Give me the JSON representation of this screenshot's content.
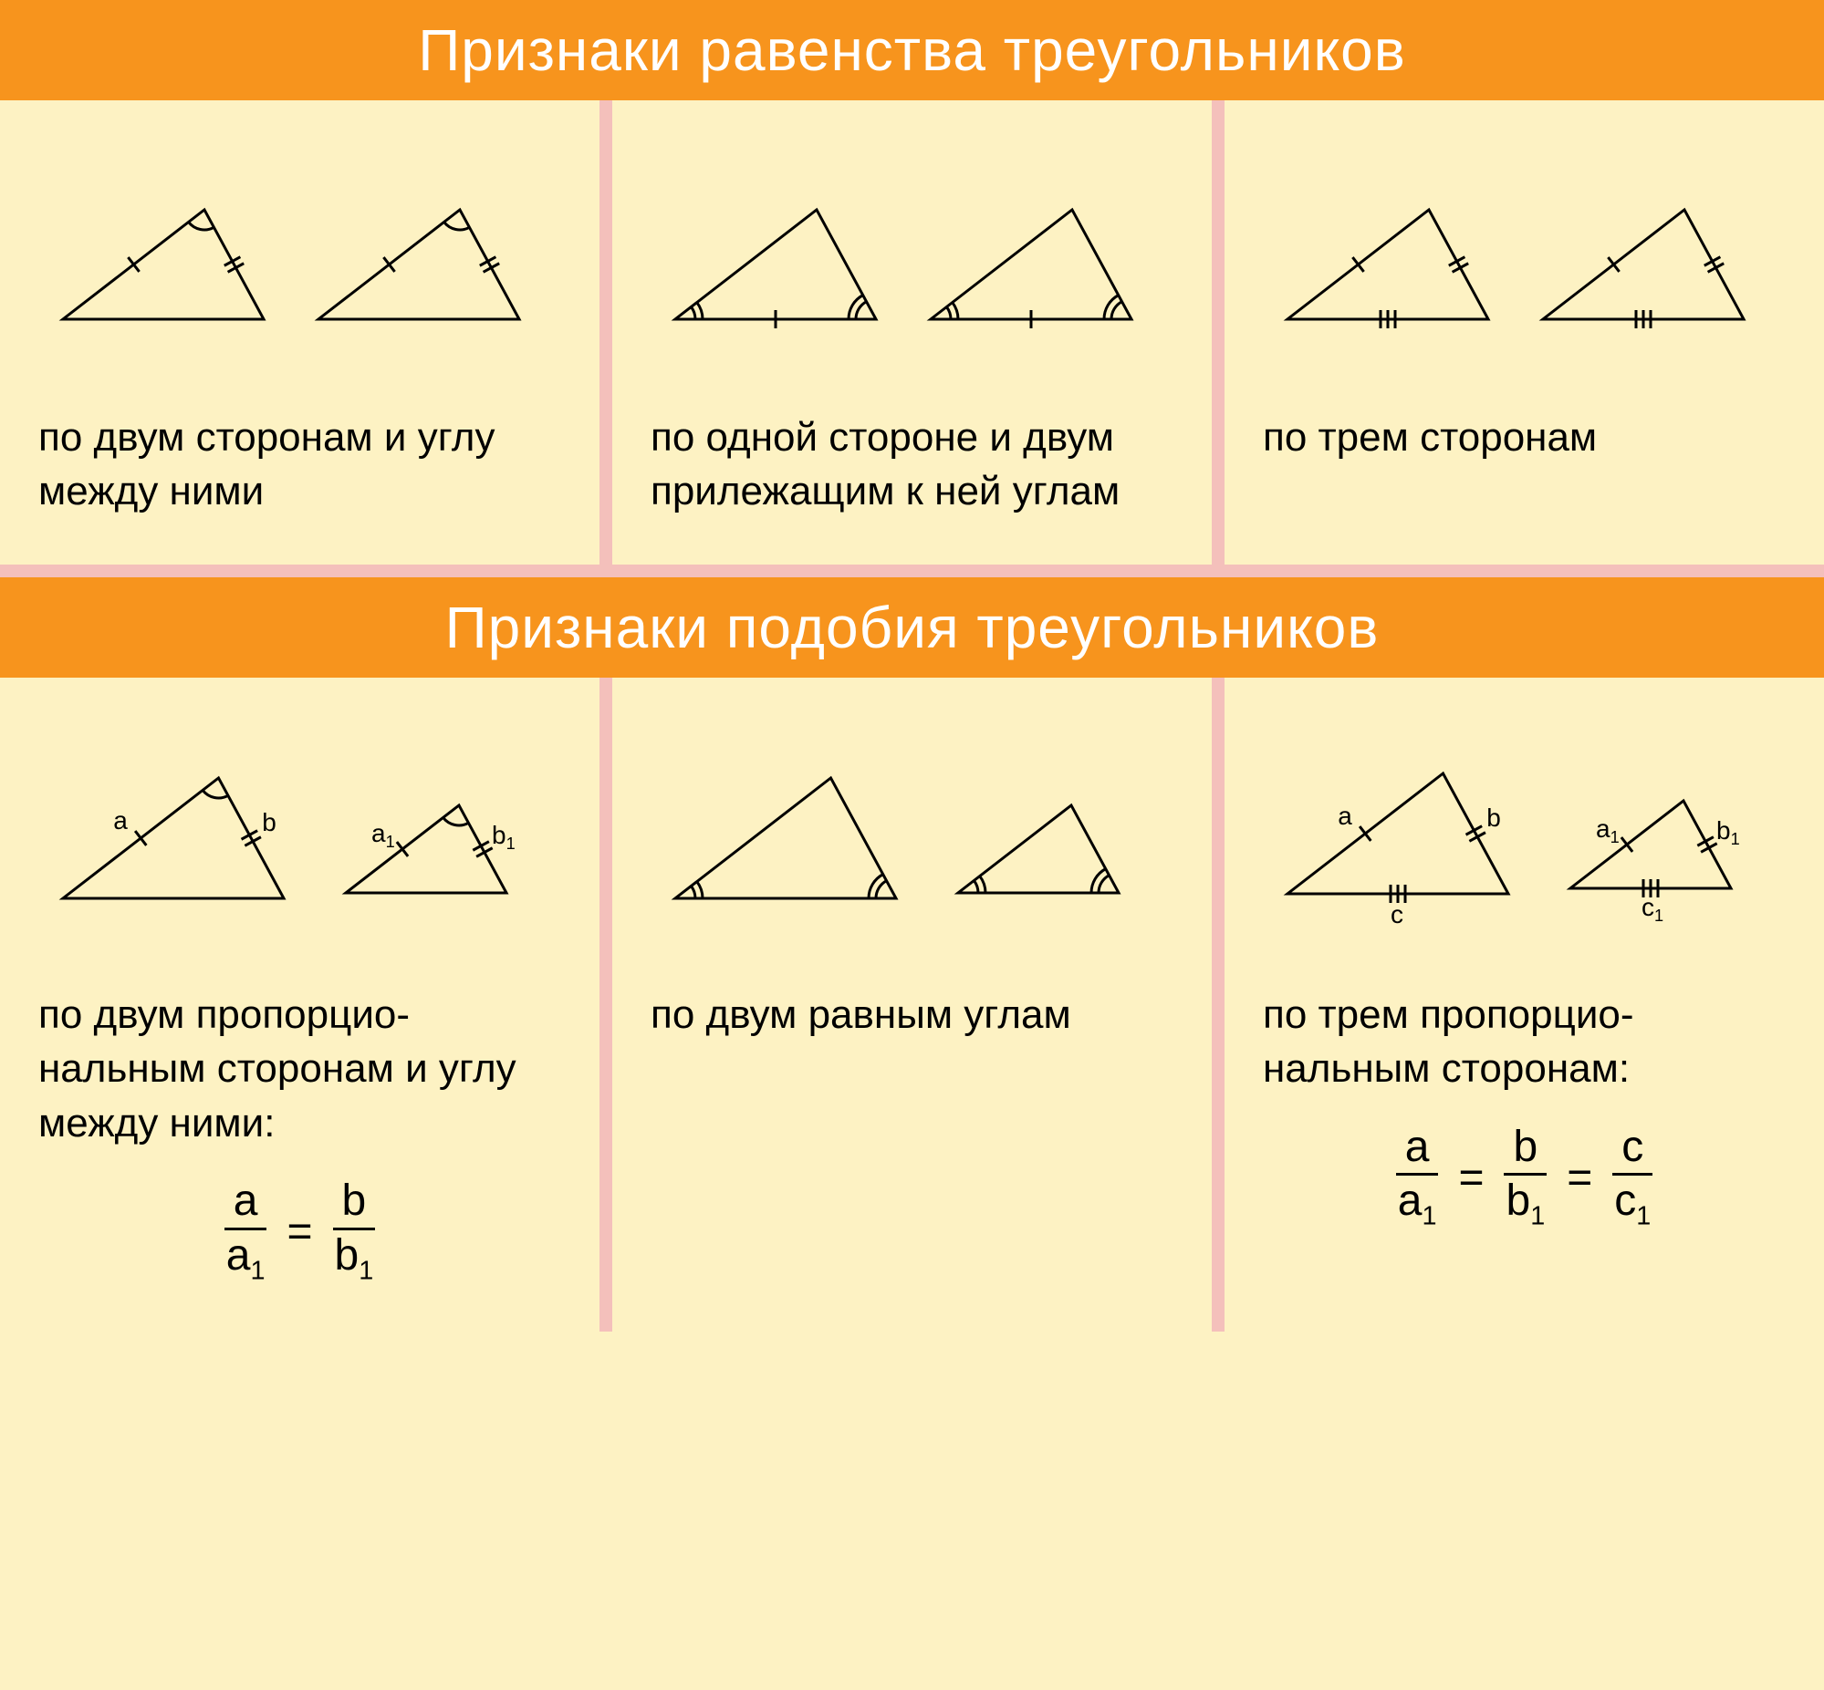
{
  "colors": {
    "header_bg": "#f7941d",
    "header_text": "#ffffff",
    "page_bg": "#fdf2c3",
    "divider": "#f4c0bb",
    "stroke": "#000000"
  },
  "fontsize": {
    "header": 64,
    "caption": 44,
    "formula": 48,
    "label": 28
  },
  "section1": {
    "title": "Признаки равенства  треугольников",
    "cells": [
      {
        "caption": "по двум сторонам и углу между ними"
      },
      {
        "caption": "по одной стороне и двум прилежащим к ней углам"
      },
      {
        "caption": "по трем сторонам"
      }
    ]
  },
  "section2": {
    "title": "Признаки подобия  треугольников",
    "cells": [
      {
        "caption": "по двум пропорцио-нальным сторонам и углу между ними:",
        "labels": {
          "a": "a",
          "b": "b",
          "a1": "a",
          "b1": "b"
        },
        "formula": [
          {
            "num": "a",
            "den": "a1"
          },
          {
            "num": "b",
            "den": "b1"
          }
        ]
      },
      {
        "caption": "по двум равным углам"
      },
      {
        "caption": "по трем пропорцио-нальным сторонам:",
        "labels": {
          "a": "a",
          "b": "b",
          "c": "c",
          "a1": "a",
          "b1": "b",
          "c1": "c"
        },
        "formula": [
          {
            "num": "a",
            "den": "a1"
          },
          {
            "num": "b",
            "den": "b1"
          },
          {
            "num": "c",
            "den": "c1"
          }
        ]
      }
    ]
  },
  "triangle": {
    "stroke_width": 3,
    "tick_len": 10,
    "arc_r1": 22,
    "arc_r2": 30
  }
}
